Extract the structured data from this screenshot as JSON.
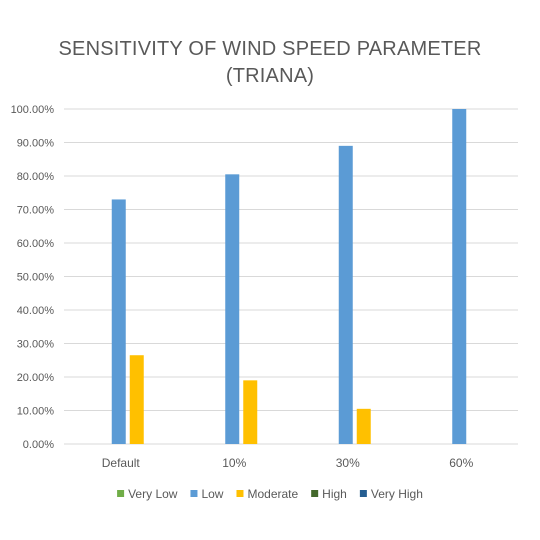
{
  "chart_data": {
    "type": "bar",
    "title_line1": "SENSITIVITY OF WIND SPEED PARAMETER",
    "title_line2": "(TRIANA)",
    "categories": [
      "Default",
      "10%",
      "30%",
      "60%"
    ],
    "yticks": [
      "0.00%",
      "10.00%",
      "20.00%",
      "30.00%",
      "40.00%",
      "50.00%",
      "60.00%",
      "70.00%",
      "80.00%",
      "90.00%",
      "100.00%"
    ],
    "ylim": [
      0,
      100
    ],
    "grid": true,
    "legend_position": "bottom",
    "series": [
      {
        "name": "Very Low",
        "color": "#70AD47",
        "values": [
          0,
          0,
          0,
          0
        ]
      },
      {
        "name": "Low",
        "color": "#5B9BD5",
        "values": [
          73,
          80.5,
          89,
          100
        ]
      },
      {
        "name": "Moderate",
        "color": "#FFC000",
        "values": [
          26.5,
          19,
          10.5,
          0
        ]
      },
      {
        "name": "High",
        "color": "#43682B",
        "values": [
          0,
          0,
          0,
          0
        ]
      },
      {
        "name": "Very High",
        "color": "#255E91",
        "values": [
          0,
          0,
          0,
          0
        ]
      }
    ]
  }
}
